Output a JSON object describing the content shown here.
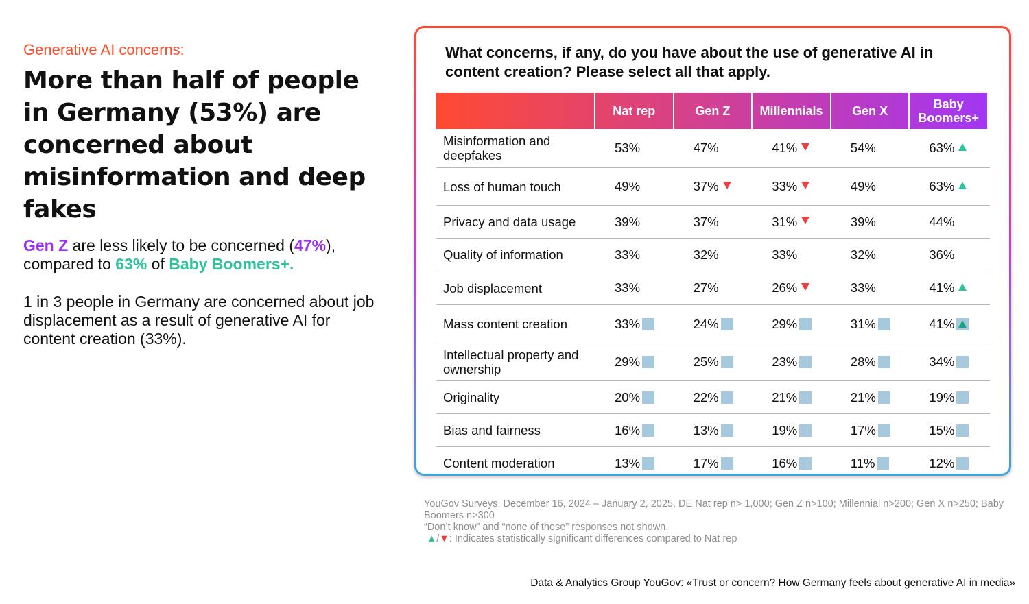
{
  "left": {
    "kicker": "Generative AI concerns:",
    "headline": "More than half of people in Germany (53%) are concerned about misinformation and deep fakes",
    "para1": {
      "gen_z": "Gen Z",
      "t1": " are less likely to be concerned (",
      "v1": "47%",
      "t2": "), compared to ",
      "v2": "63%",
      "t3": " of ",
      "boomers": "Baby Boomers+."
    },
    "para2": "1 in 3 people in Germany are concerned about job displacement as a result of generative AI for content creation (33%)."
  },
  "chart_data": {
    "type": "table",
    "title": "What concerns, if any, do you have about the use of generative AI in content creation? Please select all that apply.",
    "columns": [
      "Nat rep",
      "Gen Z",
      "Millennials",
      "Gen X",
      "Baby Boomers+"
    ],
    "rows": [
      {
        "label": "Misinformation and deepfakes",
        "values": [
          "53%",
          "47%",
          "41%",
          "54%",
          "63%"
        ],
        "markers": [
          "",
          "",
          "down",
          "",
          "up"
        ]
      },
      {
        "label": "Loss of human touch",
        "values": [
          "49%",
          "37%",
          "33%",
          "49%",
          "63%"
        ],
        "markers": [
          "",
          "down",
          "down",
          "",
          "up"
        ]
      },
      {
        "label": "Privacy and data usage",
        "values": [
          "39%",
          "37%",
          "31%",
          "39%",
          "44%"
        ],
        "markers": [
          "",
          "",
          "down",
          "",
          ""
        ]
      },
      {
        "label": "Quality of information",
        "values": [
          "33%",
          "32%",
          "33%",
          "32%",
          "36%"
        ],
        "markers": [
          "",
          "",
          "",
          "",
          ""
        ]
      },
      {
        "label": "Job displacement",
        "values": [
          "33%",
          "27%",
          "26%",
          "33%",
          "41%"
        ],
        "markers": [
          "",
          "",
          "down",
          "",
          "up"
        ]
      },
      {
        "label": "Mass content creation",
        "values": [
          "33%",
          "24%",
          "29%",
          "31%",
          "41%"
        ],
        "markers": [
          "square",
          "square",
          "square",
          "square",
          "square-up"
        ]
      },
      {
        "label": "Intellectual property and ownership",
        "values": [
          "29%",
          "25%",
          "23%",
          "28%",
          "34%"
        ],
        "markers": [
          "square",
          "square",
          "square",
          "square",
          "square"
        ]
      },
      {
        "label": "Originality",
        "values": [
          "20%",
          "22%",
          "21%",
          "21%",
          "19%"
        ],
        "markers": [
          "square",
          "square",
          "square",
          "square",
          "square"
        ]
      },
      {
        "label": "Bias and fairness",
        "values": [
          "16%",
          "13%",
          "19%",
          "17%",
          "15%"
        ],
        "markers": [
          "square",
          "square",
          "square",
          "square",
          "square"
        ]
      },
      {
        "label": "Content moderation",
        "values": [
          "13%",
          "17%",
          "16%",
          "11%",
          "12%"
        ],
        "markers": [
          "square",
          "square",
          "square",
          "square",
          "square"
        ]
      }
    ]
  },
  "colors": {
    "header_gradient_start": "#ff4a32",
    "header_gradient_end": "#a236f5",
    "up": "#2fc39d",
    "down": "#f03c3c",
    "square": "#a6c9de"
  },
  "notes": {
    "line1": "YouGov Surveys, December 16, 2024 – January 2, 2025. DE Nat rep n> 1,000; Gen Z n>100; Millennial n>200; Gen X n>250; Baby Boomers n>300",
    "line2": "“Don’t know” and “none of these” responses not shown.",
    "line3_symbols": "▲/▼",
    "line3_text": ": Indicates statistically significant differences compared to Nat rep"
  },
  "source": "Data & Analytics Group YouGov: «Trust or concern? How Germany feels about generative AI in media»"
}
